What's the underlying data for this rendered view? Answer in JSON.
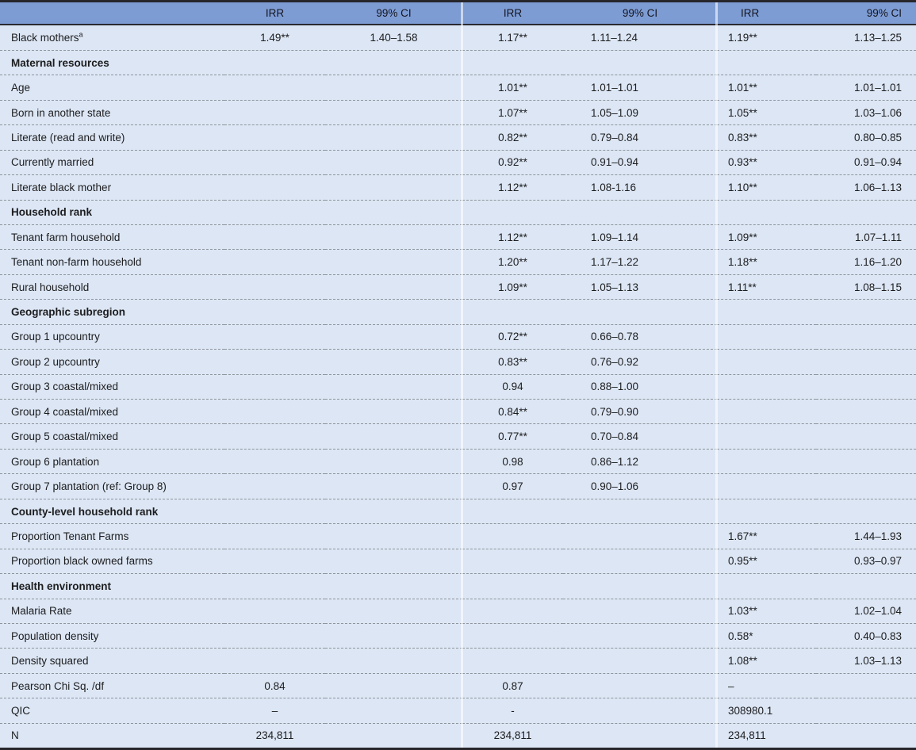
{
  "table": {
    "colors": {
      "header_bg": "#7d9cd4",
      "row_bg": "#dce6f4",
      "border_dark": "#26262b",
      "dash": "#8d949c",
      "text": "#1d1d1f"
    },
    "columns": [
      {
        "key": "label",
        "header": ""
      },
      {
        "key": "irr1",
        "header": "IRR"
      },
      {
        "key": "ci1",
        "header": "99% CI"
      },
      {
        "key": "irr2",
        "header": "IRR"
      },
      {
        "key": "ci2",
        "header": "99% CI"
      },
      {
        "key": "irr3",
        "header": "IRR"
      },
      {
        "key": "ci3",
        "header": "99% CI"
      }
    ],
    "rows": [
      {
        "type": "data",
        "label": "Black mothers",
        "sup": "a",
        "cells": [
          "1.49**",
          "1.40–1.58",
          "1.17**",
          "1.11–1.24",
          "1.19**",
          "1.13–1.25"
        ]
      },
      {
        "type": "section",
        "label": "Maternal resources"
      },
      {
        "type": "data",
        "label": "Age",
        "cells": [
          "",
          "",
          "1.01**",
          "1.01–1.01",
          "1.01**",
          "1.01–1.01"
        ]
      },
      {
        "type": "data",
        "label": "Born in another state",
        "cells": [
          "",
          "",
          "1.07**",
          "1.05–1.09",
          "1.05**",
          "1.03–1.06"
        ]
      },
      {
        "type": "data",
        "label": "Literate (read and write)",
        "cells": [
          "",
          "",
          "0.82**",
          "0.79–0.84",
          "0.83**",
          "0.80–0.85"
        ]
      },
      {
        "type": "data",
        "label": "Currently married",
        "cells": [
          "",
          "",
          "0.92**",
          "0.91–0.94",
          "0.93**",
          "0.91–0.94"
        ]
      },
      {
        "type": "data",
        "label": "Literate black mother",
        "cells": [
          "",
          "",
          "1.12**",
          "1.08-1.16",
          "1.10**",
          "1.06–1.13"
        ]
      },
      {
        "type": "section",
        "label": "Household rank"
      },
      {
        "type": "data",
        "label": "Tenant farm household",
        "cells": [
          "",
          "",
          "1.12**",
          "1.09–1.14",
          "1.09**",
          "1.07–1.11"
        ]
      },
      {
        "type": "data",
        "label": "Tenant non-farm household",
        "cells": [
          "",
          "",
          "1.20**",
          "1.17–1.22",
          "1.18**",
          "1.16–1.20"
        ]
      },
      {
        "type": "data",
        "label": "Rural household",
        "cells": [
          "",
          "",
          "1.09**",
          "1.05–1.13",
          "1.11**",
          "1.08–1.15"
        ]
      },
      {
        "type": "section",
        "label": "Geographic subregion"
      },
      {
        "type": "data",
        "label": "Group 1 upcountry",
        "cells": [
          "",
          "",
          "0.72**",
          "0.66–0.78",
          "",
          ""
        ]
      },
      {
        "type": "data",
        "label": "Group 2 upcountry",
        "cells": [
          "",
          "",
          "0.83**",
          "0.76–0.92",
          "",
          ""
        ]
      },
      {
        "type": "data",
        "label": "Group 3 coastal/mixed",
        "cells": [
          "",
          "",
          "0.94",
          "0.88–1.00",
          "",
          ""
        ]
      },
      {
        "type": "data",
        "label": "Group 4 coastal/mixed",
        "cells": [
          "",
          "",
          "0.84**",
          "0.79–0.90",
          "",
          ""
        ]
      },
      {
        "type": "data",
        "label": "Group 5 coastal/mixed",
        "cells": [
          "",
          "",
          "0.77**",
          "0.70–0.84",
          "",
          ""
        ]
      },
      {
        "type": "data",
        "label": "Group 6 plantation",
        "cells": [
          "",
          "",
          "0.98",
          "0.86–1.12",
          "",
          ""
        ]
      },
      {
        "type": "data",
        "label": "Group 7 plantation (ref: Group 8)",
        "cells": [
          "",
          "",
          "0.97",
          "0.90–1.06",
          "",
          ""
        ]
      },
      {
        "type": "section",
        "label": "County-level household rank"
      },
      {
        "type": "data",
        "label": "Proportion Tenant Farms",
        "cells": [
          "",
          "",
          "",
          "",
          "1.67**",
          "1.44–1.93"
        ]
      },
      {
        "type": "data",
        "label": "Proportion black owned farms",
        "cells": [
          "",
          "",
          "",
          "",
          "0.95**",
          "0.93–0.97"
        ]
      },
      {
        "type": "section",
        "label": "Health environment"
      },
      {
        "type": "data",
        "label": "Malaria Rate",
        "cells": [
          "",
          "",
          "",
          "",
          "1.03**",
          "1.02–1.04"
        ]
      },
      {
        "type": "data",
        "label": "Population density",
        "cells": [
          "",
          "",
          "",
          "",
          "0.58*",
          "0.40–0.83"
        ]
      },
      {
        "type": "data",
        "label": "Density squared",
        "cells": [
          "",
          "",
          "",
          "",
          "1.08**",
          "1.03–1.13"
        ]
      },
      {
        "type": "data",
        "label": "Pearson Chi Sq. /df",
        "cells": [
          "0.84",
          "",
          "0.87",
          "",
          "–",
          ""
        ]
      },
      {
        "type": "data",
        "label": "QIC",
        "cells": [
          "–",
          "",
          "-",
          "",
          "308980.1",
          ""
        ]
      },
      {
        "type": "data",
        "label": "N",
        "cells": [
          "234,811",
          "",
          "234,811",
          "",
          "234,811",
          ""
        ]
      }
    ]
  }
}
